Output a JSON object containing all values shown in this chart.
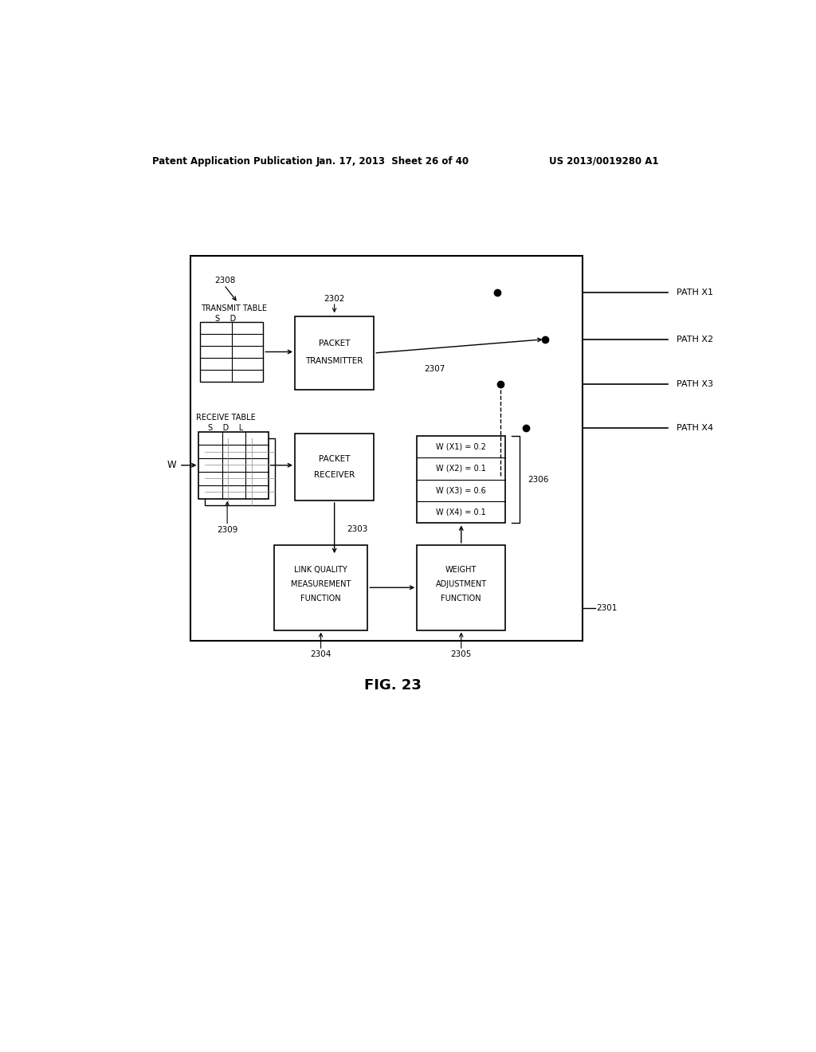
{
  "bg_color": "#ffffff",
  "header_left": "Patent Application Publication",
  "header_mid": "Jan. 17, 2013  Sheet 26 of 40",
  "header_right": "US 2013/0019280 A1",
  "fig_label": "FIG. 23",
  "path_labels": [
    "PATH X1",
    "PATH X2",
    "PATH X3",
    "PATH X4"
  ],
  "weights": [
    "W (X1) = 0.2",
    "W (X2) = 0.1",
    "W (X3) = 0.6",
    "W (X4) = 0.1"
  ]
}
